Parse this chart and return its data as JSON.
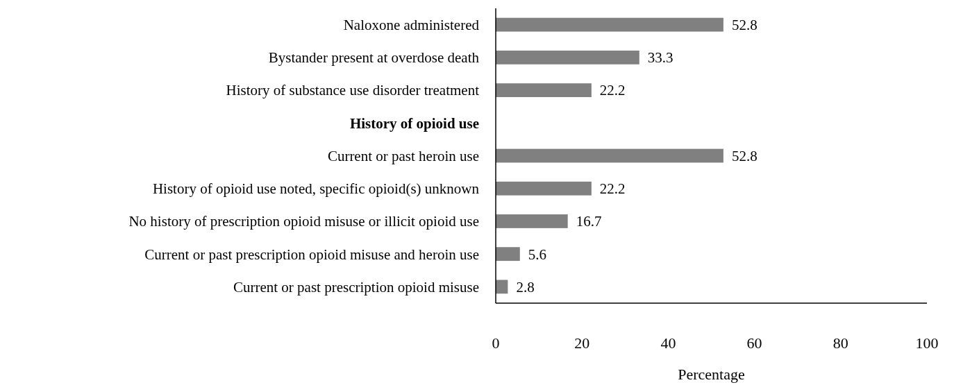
{
  "chart_data": {
    "type": "bar",
    "orientation": "horizontal",
    "xlabel": "Percentage",
    "categories": [
      "Naloxone administered",
      "Bystander present at overdose death",
      "History of substance use disorder treatment",
      "History of opioid use",
      "Current or past heroin use",
      "History of opioid use noted, specific opioid(s) unknown",
      "No history of prescription opioid misuse or illicit opioid use",
      "Current or past prescription opioid misuse and heroin use",
      "Current or past prescription opioid misuse"
    ],
    "values": [
      52.8,
      33.3,
      22.2,
      null,
      52.8,
      22.2,
      16.7,
      5.6,
      2.8
    ],
    "color": "#808080",
    "xlim": [
      0,
      100
    ],
    "xticks": [
      0,
      20,
      40,
      60,
      80,
      100
    ],
    "data_labels": true
  }
}
